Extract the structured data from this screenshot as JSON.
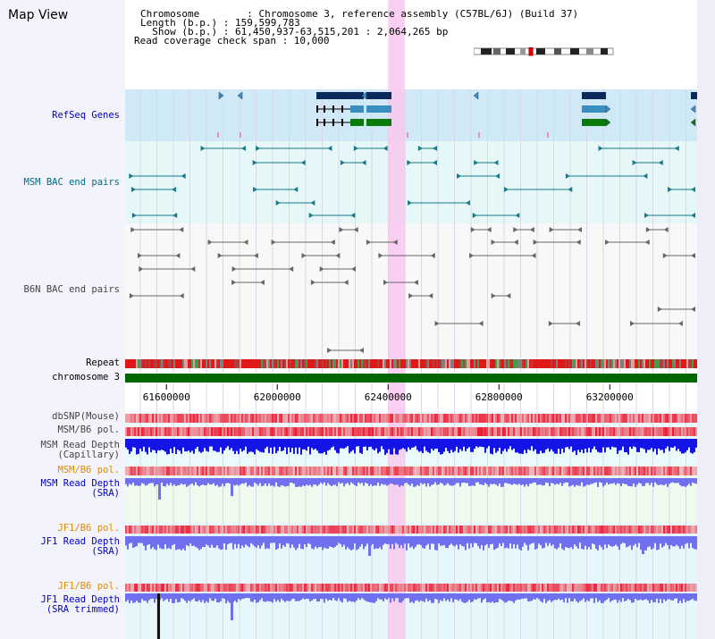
{
  "header": {
    "title": "Map View",
    "info_lines": [
      "Chromosome        : Chromosome 3, reference assembly (C57BL/6J) (Build 37)",
      "Length (b.p.) : 159,599,783",
      "  Show (b.p.) : 61,450,937-63,515,201 : 2,064,265 bp",
      "Read coverage check span : 10,000"
    ]
  },
  "tracks": {
    "refseq": "RefSeq Genes",
    "msm_bac": "MSM BAC end pairs",
    "b6n_bac": "B6N BAC end pairs",
    "repeat": "Repeat",
    "chromosome": "chromosome 3",
    "dbsnp": "dbSNP(Mouse)",
    "msm_b6_pol_1": "MSM/B6 pol.",
    "msm_depth_cap": "MSM Read Depth\n(Capillary)",
    "msm_b6_pol_2": "MSM/B6 pol.",
    "msm_depth_sra": "MSM Read Depth\n(SRA)",
    "jf1_b6_pol_1": "JF1/B6 pol.",
    "jf1_depth_sra": "JF1 Read Depth\n(SRA)",
    "jf1_b6_pol_2": "JF1/B6 pol.",
    "jf1_depth_trim": "JF1 Read Depth\n(SRA trimmed)"
  },
  "axis": {
    "ticks": [
      "61600000",
      "62000000",
      "62400000",
      "62800000",
      "63200000"
    ],
    "tick_values": [
      61600000,
      62000000,
      62400000,
      62800000,
      63200000
    ],
    "range": [
      61450937,
      63515201
    ]
  },
  "highlight": {
    "start": 62400000,
    "end": 62460000
  },
  "colors": {
    "refseq_bg": "#cfe9f7",
    "msm_bg": "#e6f7f7",
    "gene_dark": "#0a2a5e",
    "gene_mid": "#3a8fbf",
    "gene_green": "#0a7a0a",
    "msm_line": "#1a7a8a",
    "b6n_line": "#666666",
    "chrom_green": "#006600",
    "highlight": "#f8c8ef",
    "depth_blue": "#1414e6",
    "depth_light": "#7070ee"
  }
}
